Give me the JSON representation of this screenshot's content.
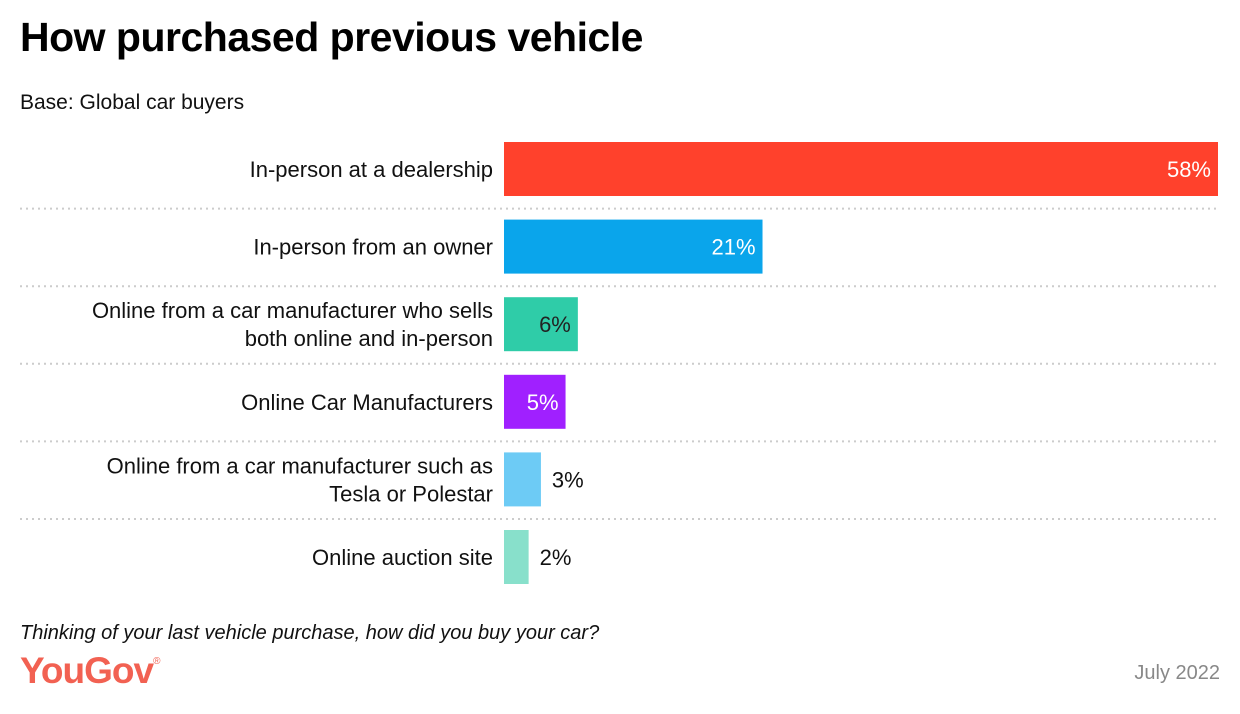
{
  "title": "How purchased previous vehicle",
  "subtitle": "Base: Global car buyers",
  "question": "Thinking of your last vehicle purchase, how did you buy your car?",
  "brand": "YouGov",
  "date": "July 2022",
  "chart_data": {
    "type": "bar",
    "orientation": "horizontal",
    "title": "How purchased previous vehicle",
    "categories": [
      [
        "In-person at a dealership"
      ],
      [
        "In-person from an owner"
      ],
      [
        "Online from a car manufacturer who sells",
        "both online and in-person"
      ],
      [
        "Online Car Manufacturers"
      ],
      [
        "Online from a car manufacturer such as",
        "Tesla or Polestar"
      ],
      [
        "Online auction site"
      ]
    ],
    "values": [
      58,
      21,
      6,
      5,
      3,
      2
    ],
    "value_labels": [
      "58%",
      "21%",
      "6%",
      "5%",
      "3%",
      "2%"
    ],
    "colors": [
      "#ff412c",
      "#0aa5eb",
      "#2fcca8",
      "#a020ff",
      "#6dcbf5",
      "#88e0cb"
    ],
    "label_colors": [
      "#ffffff",
      "#ffffff",
      "#222222",
      "#ffffff",
      "#111111",
      "#111111"
    ],
    "xlim": [
      0,
      58
    ],
    "grid": false
  }
}
